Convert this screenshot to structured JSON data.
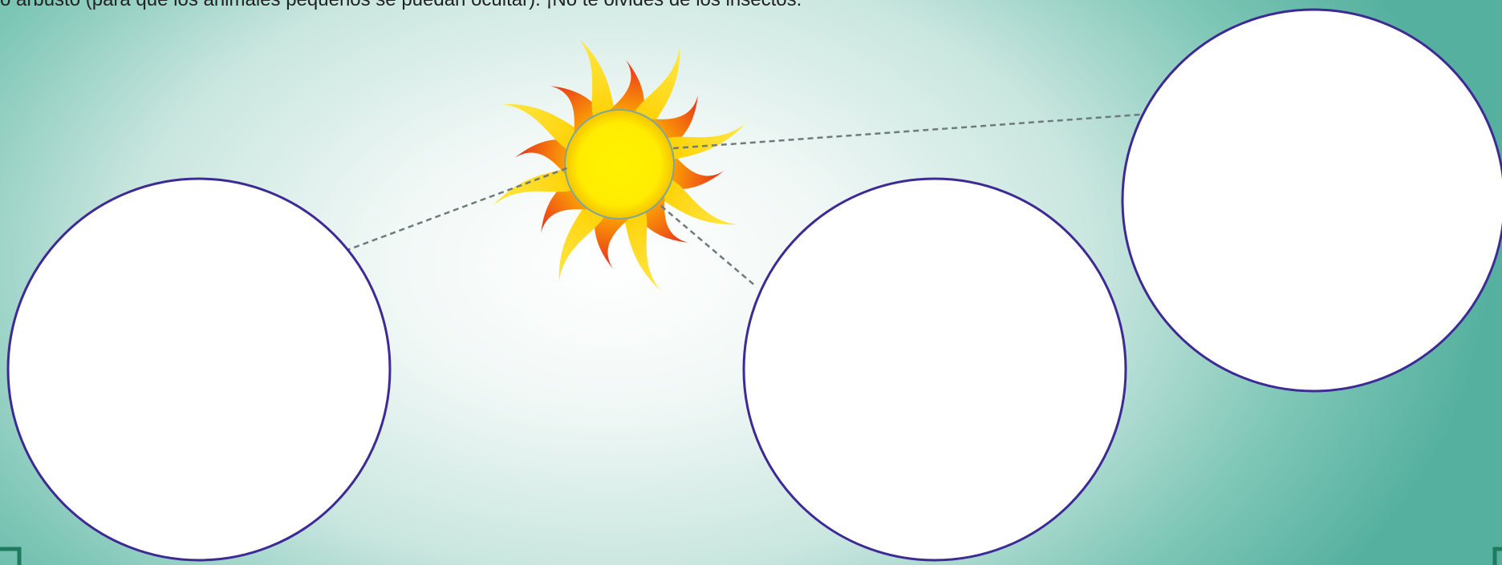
{
  "instruction_text": "o arbusto (para que los animales pequeños se puedan ocultar). ¡No te olvides de los insectos."
}
